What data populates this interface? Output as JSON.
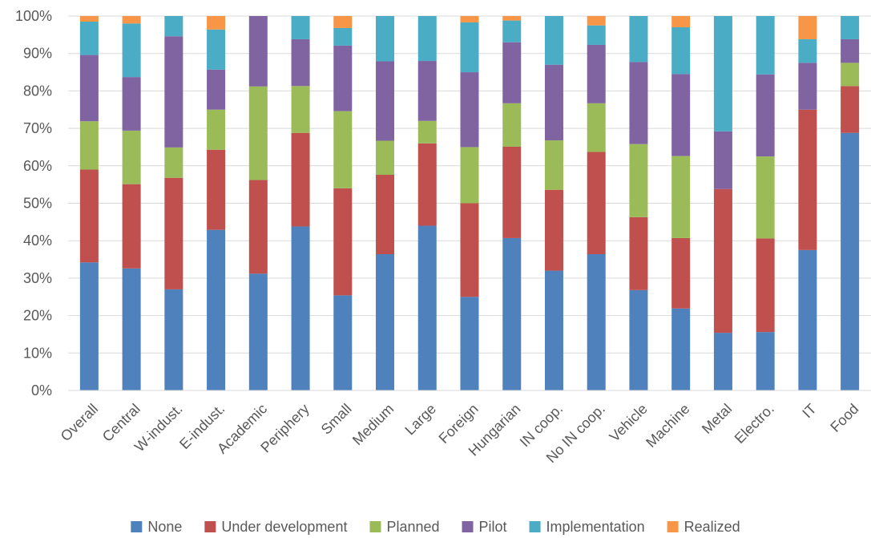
{
  "chart_data": {
    "type": "bar",
    "stacked": true,
    "percent_stacked": true,
    "title": "",
    "xlabel": "",
    "ylabel": "",
    "ylim": [
      0,
      100
    ],
    "yticks": [
      "0%",
      "10%",
      "20%",
      "30%",
      "40%",
      "50%",
      "60%",
      "70%",
      "80%",
      "90%",
      "100%"
    ],
    "grid": true,
    "legend_position": "bottom",
    "categories": [
      "Overall",
      "Central",
      "W-indust.",
      "E-indust.",
      "Academic",
      "Periphery",
      "Small",
      "Medium",
      "Large",
      "Foreign",
      "Hungarian",
      "IN coop.",
      "No IN coop.",
      "Vehicle",
      "Machine",
      "Metal",
      "Electro.",
      "IT",
      "Food"
    ],
    "series": [
      {
        "name": "None",
        "color": "#4F81BD",
        "values": [
          34.2,
          32.6,
          27.0,
          42.9,
          31.2,
          43.8,
          25.4,
          36.4,
          44.0,
          25.0,
          40.7,
          32.0,
          36.4,
          26.8,
          21.9,
          15.4,
          15.6,
          37.5,
          68.8
        ]
      },
      {
        "name": "Under development",
        "color": "#C0504D",
        "values": [
          24.8,
          22.5,
          29.8,
          21.4,
          25.0,
          25.0,
          28.6,
          21.2,
          22.0,
          25.0,
          24.4,
          21.6,
          27.3,
          19.5,
          18.8,
          38.4,
          25.0,
          37.5,
          12.5
        ]
      },
      {
        "name": "Planned",
        "color": "#9BBB59",
        "values": [
          12.9,
          14.3,
          8.1,
          10.7,
          25.0,
          12.5,
          20.6,
          9.1,
          6.0,
          15.0,
          11.6,
          13.2,
          13.0,
          19.5,
          21.9,
          0,
          21.9,
          0,
          6.2
        ]
      },
      {
        "name": "Pilot",
        "color": "#8064A2",
        "values": [
          17.7,
          14.3,
          29.7,
          10.7,
          18.8,
          12.5,
          17.5,
          21.2,
          16.0,
          20.0,
          16.3,
          20.2,
          15.6,
          21.9,
          21.9,
          15.4,
          21.9,
          12.5,
          6.3
        ]
      },
      {
        "name": "Implementation",
        "color": "#4BACC6",
        "values": [
          8.9,
          14.3,
          5.4,
          10.7,
          0,
          6.2,
          4.7,
          12.1,
          12.0,
          13.3,
          5.8,
          13.0,
          5.2,
          12.3,
          12.5,
          30.8,
          15.6,
          6.3,
          6.2
        ]
      },
      {
        "name": "Realized",
        "color": "#F79646",
        "values": [
          1.5,
          2.0,
          0,
          3.6,
          0,
          0,
          3.2,
          0,
          0,
          1.7,
          1.2,
          0,
          2.5,
          0,
          3.0,
          0,
          0,
          6.2,
          0
        ]
      }
    ]
  }
}
